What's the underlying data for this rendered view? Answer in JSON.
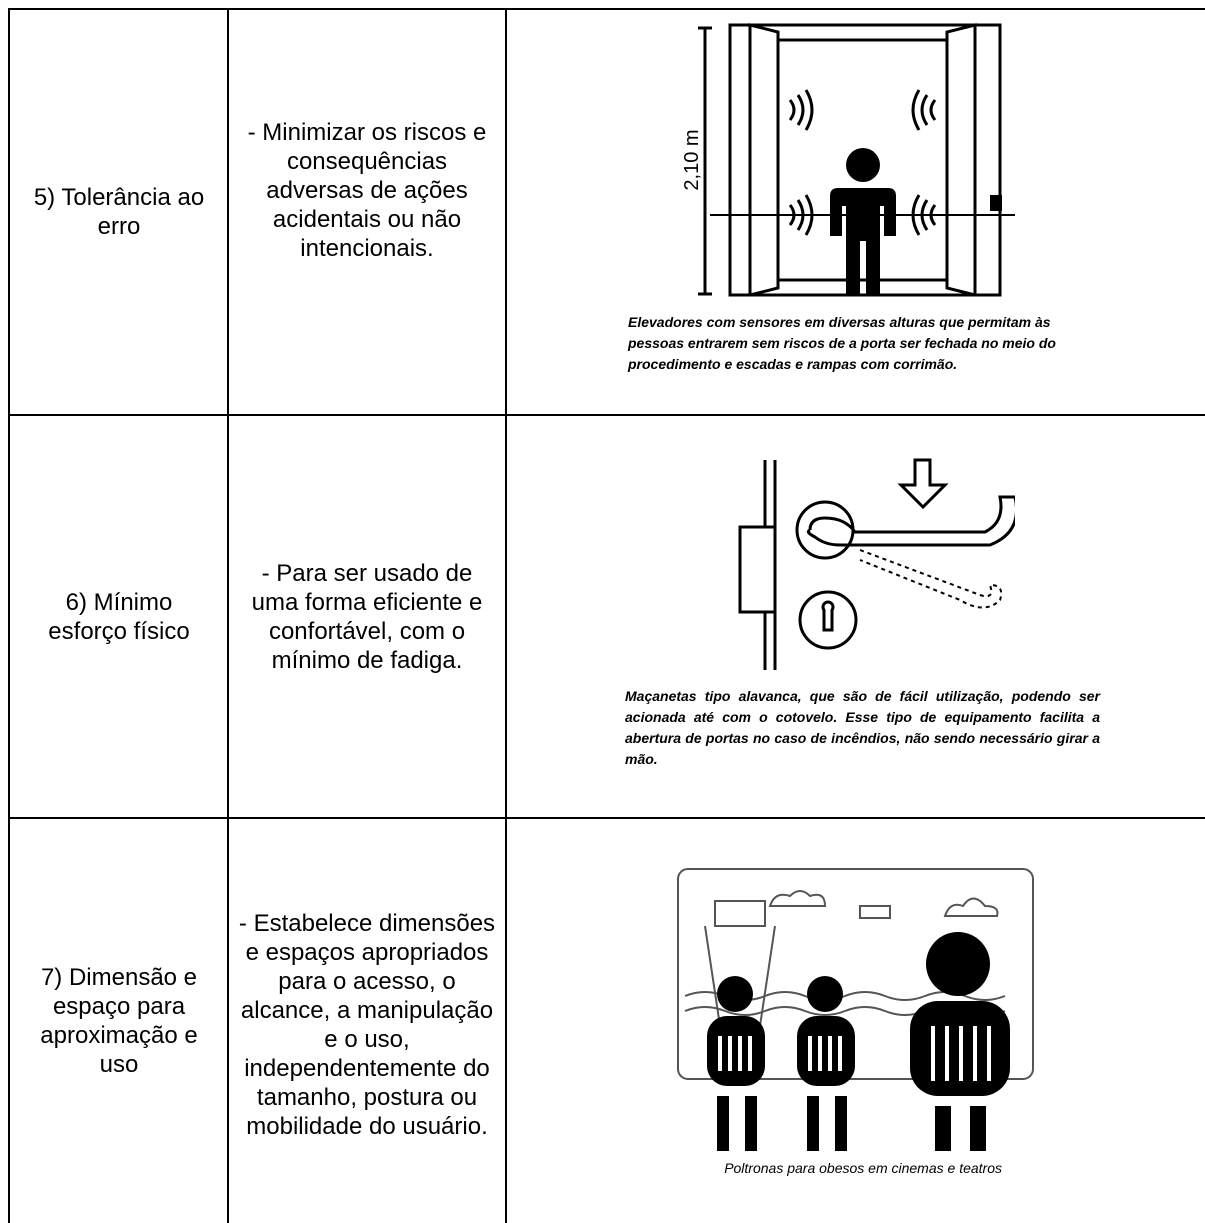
{
  "table": {
    "rows": [
      {
        "principle": "5) Tolerância ao erro",
        "description": "- Minimizar os riscos e consequências adversas de ações acidentais ou não intencionais.",
        "figure_label": "2,10 m",
        "caption": "Elevadores com sensores em diversas alturas que permitam às pessoas entrarem sem riscos de a porta ser fechada no meio do procedimento e escadas e rampas com corrimão."
      },
      {
        "principle": "6) Mínimo esforço físico",
        "description": "- Para ser usado de uma forma eficiente e confortável, com o mínimo de fadiga.",
        "caption": "Maçanetas tipo alavanca, que  são de fácil utilização, podendo ser acionada até com o cotovelo. Esse tipo de equipamento facilita a abertura de portas  no caso de incêndios, não sendo necessário girar a mão."
      },
      {
        "principle": "7) Dimensão e espaço para aproximação e uso",
        "description": "- Estabelece dimensões e espaços apropriados para o acesso, o alcance, a manipulação e o uso, independentemente do tamanho, postura ou mobilidade do usuário.",
        "caption": "Poltronas para obesos em cinemas e teatros"
      }
    ]
  }
}
